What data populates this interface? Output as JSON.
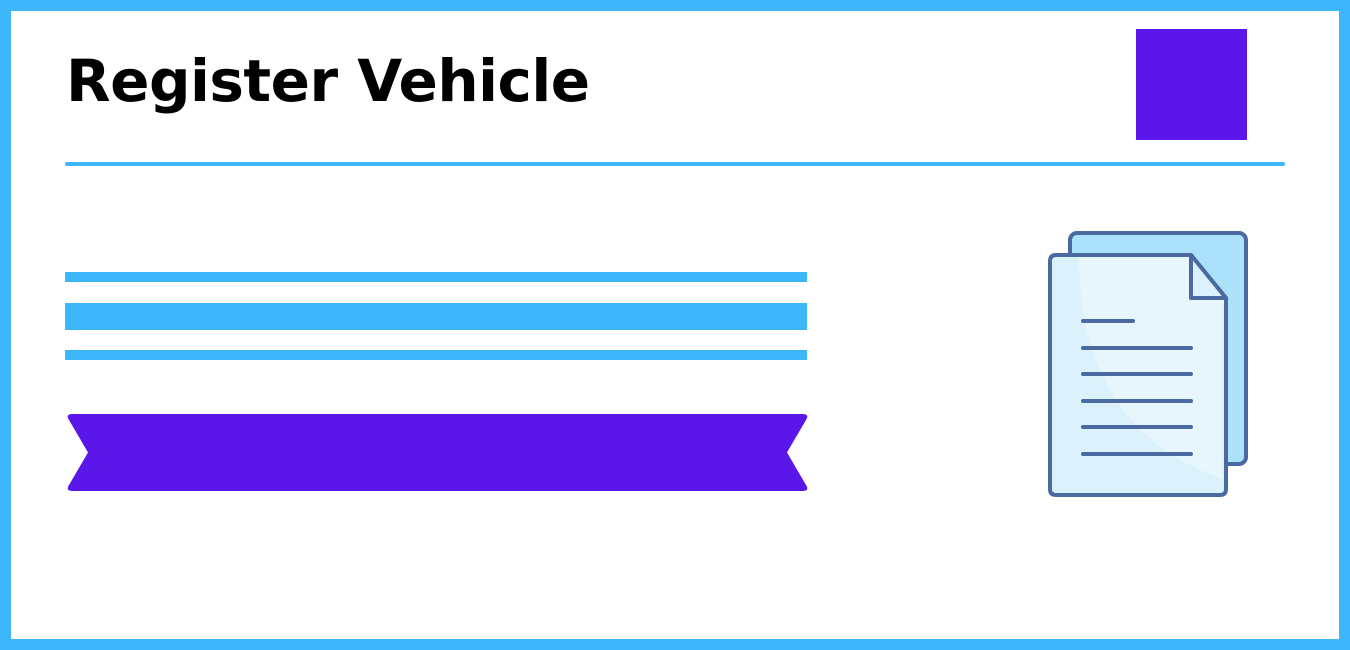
{
  "header": {
    "title": "Register Vehicle"
  },
  "icons": {
    "document": "documents-icon"
  },
  "colors": {
    "frame": "#3db6fc",
    "accent": "#5b17ea",
    "icon_stroke": "#4a6aa1",
    "icon_fill_back": "#abe2fa",
    "icon_fill_front": "#dbf1fc"
  }
}
